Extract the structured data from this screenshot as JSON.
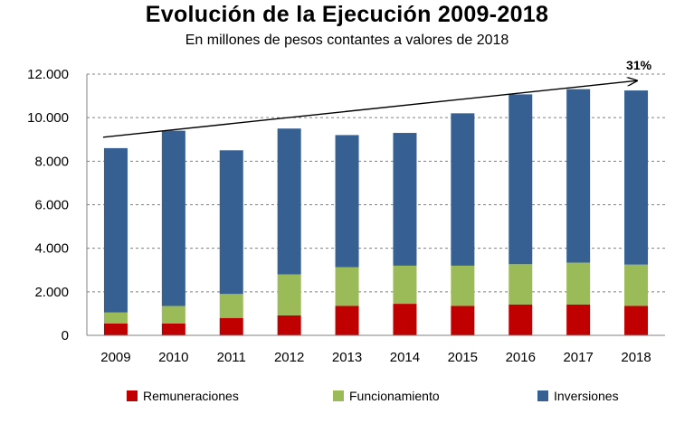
{
  "chart_data": {
    "type": "bar",
    "stacked": true,
    "title": "Evolución  de la Ejecución 2009-2018",
    "subtitle": "En millones de pesos contantes a valores de 2018",
    "categories": [
      "2009",
      "2010",
      "2011",
      "2012",
      "2013",
      "2014",
      "2015",
      "2016",
      "2017",
      "2018"
    ],
    "series": [
      {
        "name": "Remuneraciones",
        "color": "#c00000",
        "values": [
          550,
          550,
          800,
          920,
          1350,
          1450,
          1350,
          1420,
          1420,
          1350
        ]
      },
      {
        "name": "Funcionamiento",
        "color": "#9bbb59",
        "values": [
          500,
          800,
          1100,
          1880,
          1780,
          1750,
          1850,
          1850,
          1920,
          1900
        ]
      },
      {
        "name": "Inversiones",
        "color": "#376092",
        "values": [
          7550,
          8050,
          6600,
          6700,
          6070,
          6100,
          7000,
          7800,
          7970,
          8000
        ]
      }
    ],
    "ylim": [
      0,
      12000
    ],
    "yticks": [
      {
        "value": 0,
        "label": "0"
      },
      {
        "value": 2000,
        "label": "2.000"
      },
      {
        "value": 4000,
        "label": "4.000"
      },
      {
        "value": 6000,
        "label": "6.000"
      },
      {
        "value": 8000,
        "label": "8.000"
      },
      {
        "value": 10000,
        "label": "10.000"
      },
      {
        "value": 12000,
        "label": "12.000"
      }
    ],
    "grid": "dashed-horizontal",
    "trend_arrow": {
      "from_category": "2009",
      "from_value": 9100,
      "to_category": "2018",
      "to_value": 11700,
      "label": "31%"
    },
    "legend": "bottom"
  }
}
